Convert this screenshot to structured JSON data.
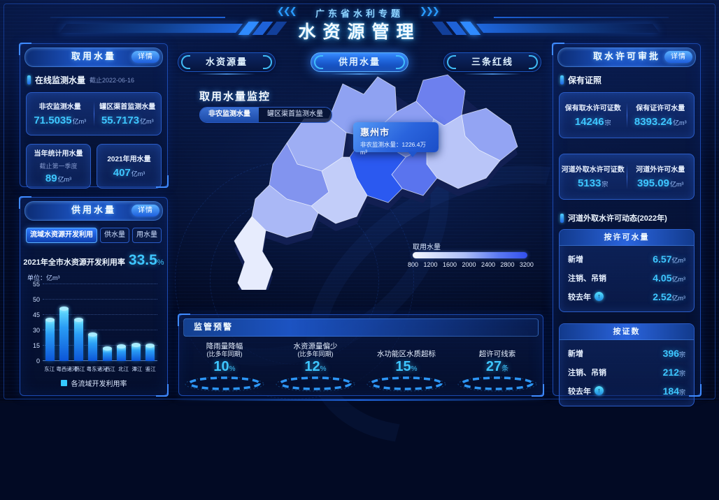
{
  "header": {
    "subtitle": "广东省水利专题",
    "title": "水资源管理"
  },
  "nav": {
    "tabs": [
      {
        "label": "水资源量",
        "active": false
      },
      {
        "label": "供用水量",
        "active": true
      },
      {
        "label": "三条红线",
        "active": false
      }
    ]
  },
  "intake": {
    "title": "取用水量",
    "detail_label": "详情",
    "section_label": "在线监测水量",
    "section_asof": "截止2022-06-16",
    "monitor_card": {
      "left": {
        "label": "非农监测水量",
        "value": "71.5035",
        "unit": "亿m³"
      },
      "right": {
        "label": "罐区渠首监测水量",
        "value": "55.7173",
        "unit": "亿m³"
      }
    },
    "stat_cards": [
      {
        "label": "当年统计用水量",
        "sub": "截止第一季度",
        "value": "89",
        "unit": "亿m³"
      },
      {
        "label": "2021年用水量",
        "sub": "",
        "value": "407",
        "unit": "亿m³"
      }
    ]
  },
  "supply": {
    "title": "供用水量",
    "detail_label": "详情",
    "tabs": [
      {
        "label": "流域水资源开发利用",
        "active": true
      },
      {
        "label": "供水量",
        "active": false
      },
      {
        "label": "用水量",
        "active": false
      }
    ],
    "rate_label": "2021年全市水资源开发利用率",
    "rate_value": "33.5",
    "rate_unit": "%"
  },
  "chart_data": {
    "type": "bar",
    "unit_note": "单位：亿m³",
    "categories": [
      "东江",
      "粤西诸河",
      "韩江",
      "粤东诸河",
      "西江",
      "北江",
      "潭江",
      "鉴江"
    ],
    "values": [
      40,
      47,
      40,
      26,
      12,
      14,
      16,
      15
    ],
    "yticks": [
      0,
      15,
      30,
      45,
      50,
      55
    ],
    "legend": [
      "各流域开发利用率"
    ],
    "grid": "dotted horizontal",
    "legend_position": "bottom"
  },
  "monitor": {
    "heading": "取用水量监控",
    "tabs": [
      {
        "label": "非农监测水量",
        "active": true
      },
      {
        "label": "罐区渠首监测水量",
        "active": false
      }
    ],
    "tooltip": {
      "city": "惠州市",
      "metric": "非农监测水量",
      "value": "1226.4",
      "unit": "万m³"
    },
    "legend": {
      "label": "取用水量",
      "ticks": [
        "800",
        "1200",
        "1600",
        "2000",
        "2400",
        "2800",
        "3200"
      ]
    }
  },
  "warning": {
    "title": "监管预警",
    "items": [
      {
        "label": "降雨量降幅",
        "sub": "(比多年同期)",
        "value": "10",
        "unit": "%"
      },
      {
        "label": "水资源量偏少",
        "sub": "(比多年同期)",
        "value": "12",
        "unit": "%"
      },
      {
        "label": "水功能区水质超标",
        "sub": "",
        "value": "15",
        "unit": "%"
      },
      {
        "label": "超许可线索",
        "sub": "",
        "value": "27",
        "unit": "条"
      }
    ]
  },
  "permit": {
    "title": "取水许可审批",
    "detail_label": "详情",
    "section1": "保有证照",
    "section2": "河道外取水许可动态(2022年)",
    "holding_cards": [
      {
        "left": {
          "label": "保有取水许可证数",
          "value": "14246",
          "unit": "宗"
        },
        "right": {
          "label": "保有证许可水量",
          "value": "8393.24",
          "unit": "亿m³"
        }
      },
      {
        "left": {
          "label": "河道外取水许可证数",
          "value": "5133",
          "unit": "宗"
        },
        "right": {
          "label": "河道外许可水量",
          "value": "395.09",
          "unit": "亿m³"
        }
      }
    ],
    "dynamic_cards": [
      {
        "title": "按许可水量",
        "rows": [
          {
            "label": "新增",
            "value": "6.57",
            "unit": "亿m³",
            "arrow": false
          },
          {
            "label": "注销、吊销",
            "value": "4.05",
            "unit": "亿m³",
            "arrow": false
          },
          {
            "label": "较去年",
            "value": "2.52",
            "unit": "亿m³",
            "arrow": true
          }
        ]
      },
      {
        "title": "按证数",
        "rows": [
          {
            "label": "新增",
            "value": "396",
            "unit": "宗",
            "arrow": false
          },
          {
            "label": "注销、吊销",
            "value": "212",
            "unit": "宗",
            "arrow": false
          },
          {
            "label": "较去年",
            "value": "184",
            "unit": "宗",
            "arrow": true
          }
        ]
      }
    ]
  },
  "colors": {
    "accent_value": "#3ec6ff",
    "panel_border": "#1c4ab0",
    "map_scale_low": "#f4f7ff",
    "map_scale_high": "#3350ee",
    "tooltip_bg": "#2a64dd"
  }
}
